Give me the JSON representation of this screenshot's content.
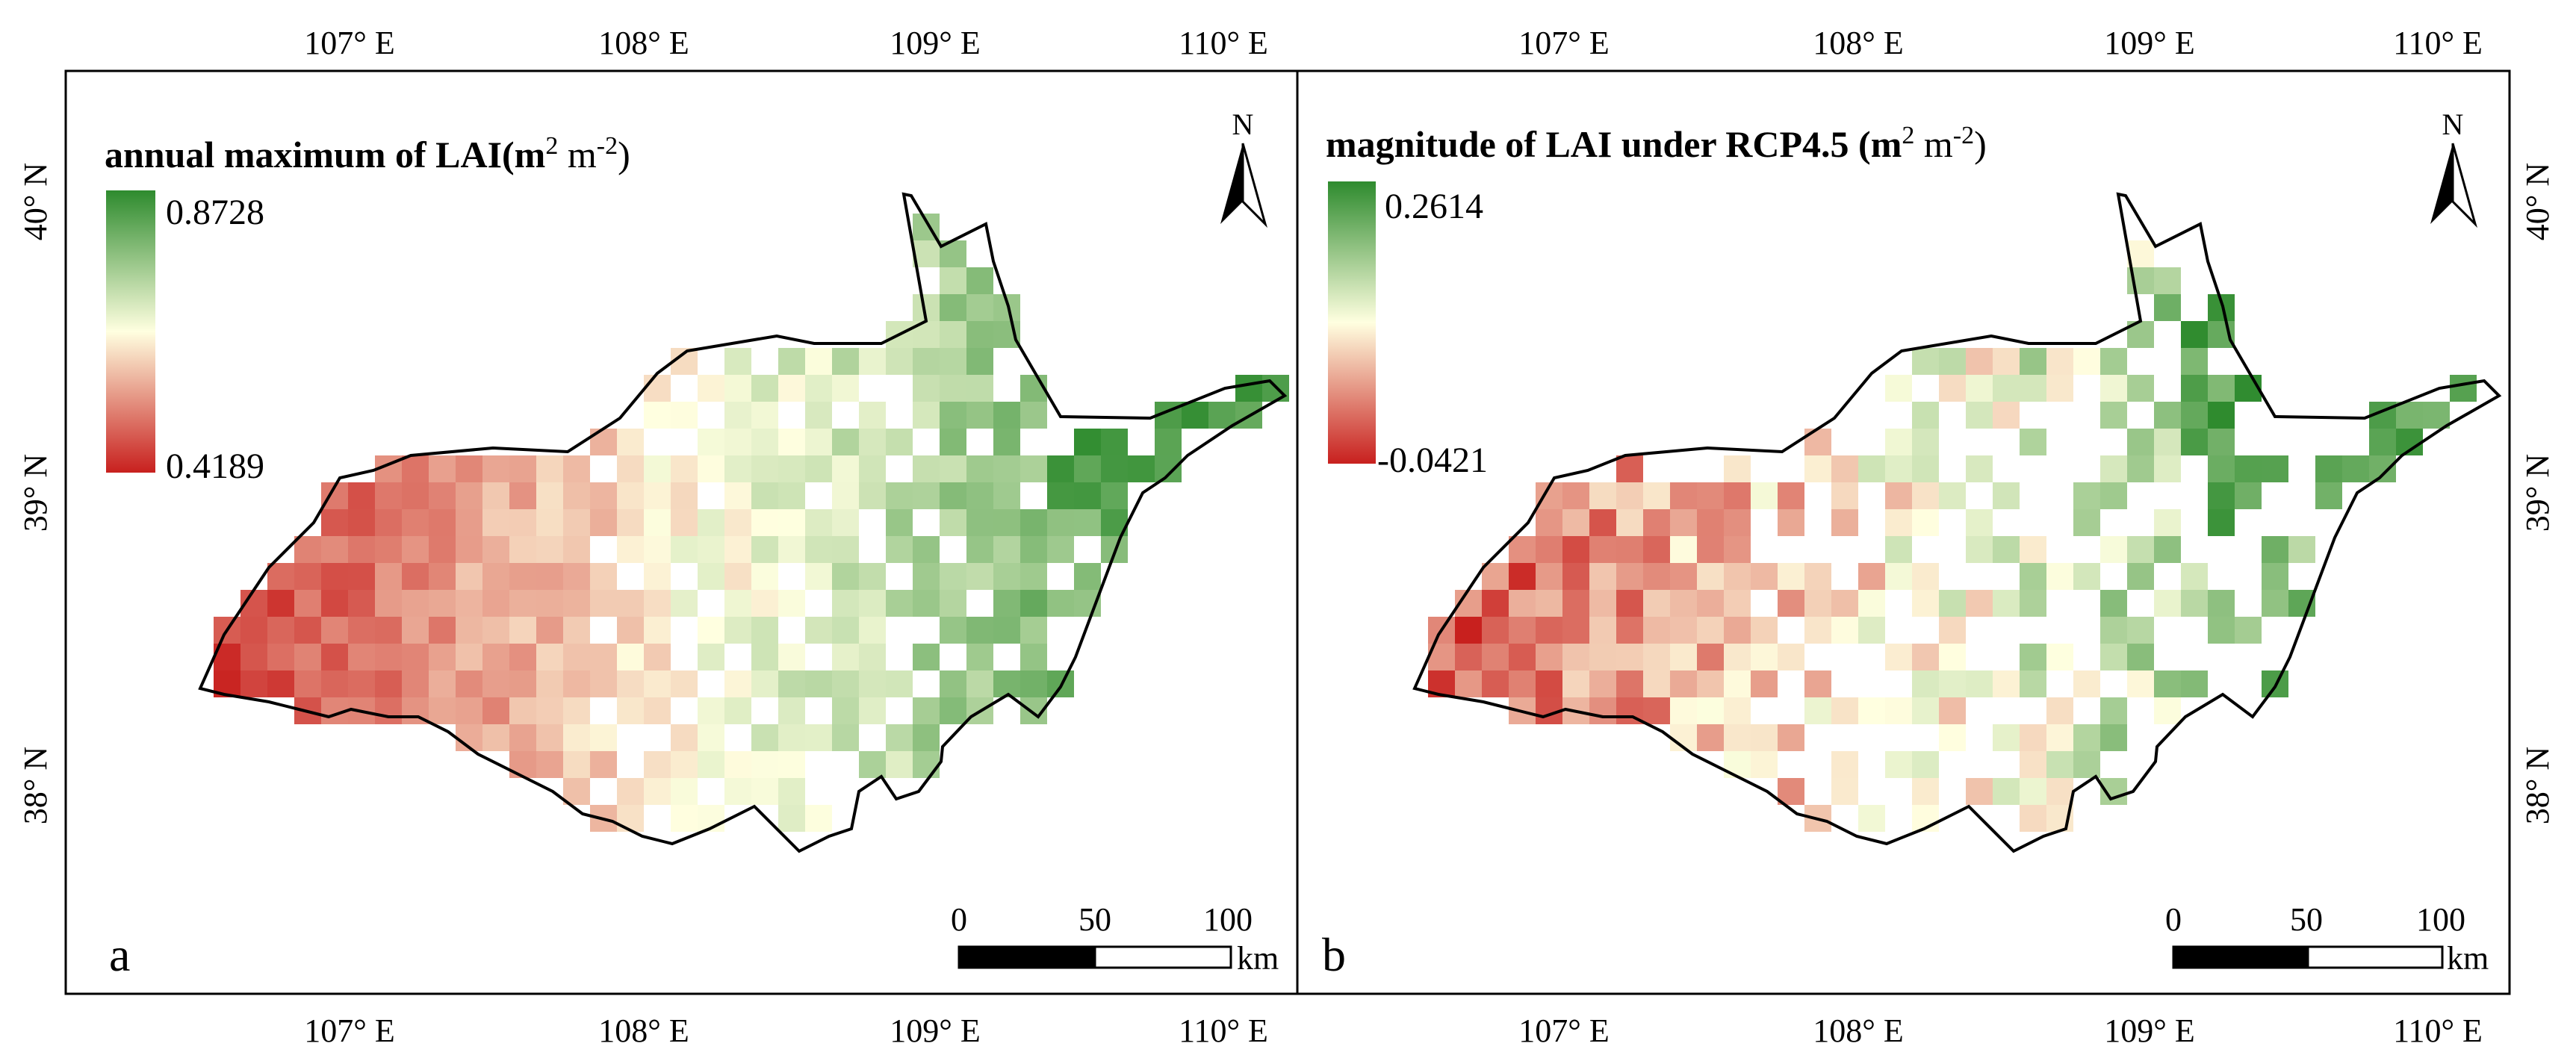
{
  "figure": {
    "panels": [
      {
        "letter": "a",
        "title_prefix": "annual maximum of LAI(m",
        "title_sup1": "2",
        "title_mid": " m",
        "title_sup2": "-2",
        "title_suffix": ")",
        "legend_max": "0.8728",
        "legend_min": "0.4189",
        "value_range": [
          0.4189,
          0.8728
        ]
      },
      {
        "letter": "b",
        "title_prefix": "magnitude of LAI under RCP4.5 (m",
        "title_sup1": "2",
        "title_mid": " m",
        "title_sup2": "-2",
        "title_suffix": ")",
        "legend_max": "0.2614",
        "legend_min": "-0.0421",
        "value_range": [
          -0.0421,
          0.2614
        ]
      }
    ],
    "lon_labels": [
      "107° E",
      "108° E",
      "109° E",
      "110° E"
    ],
    "lat_labels": [
      "40° N",
      "39° N",
      "38° N"
    ],
    "north_label": "N",
    "scale_labels": [
      "0",
      "50",
      "100"
    ],
    "scale_unit": "km",
    "colors": {
      "high": "#2e8b2e",
      "mid": "#ffffe0",
      "low": "#c8201e",
      "frame": "#000000",
      "boundary": "#000000"
    }
  }
}
